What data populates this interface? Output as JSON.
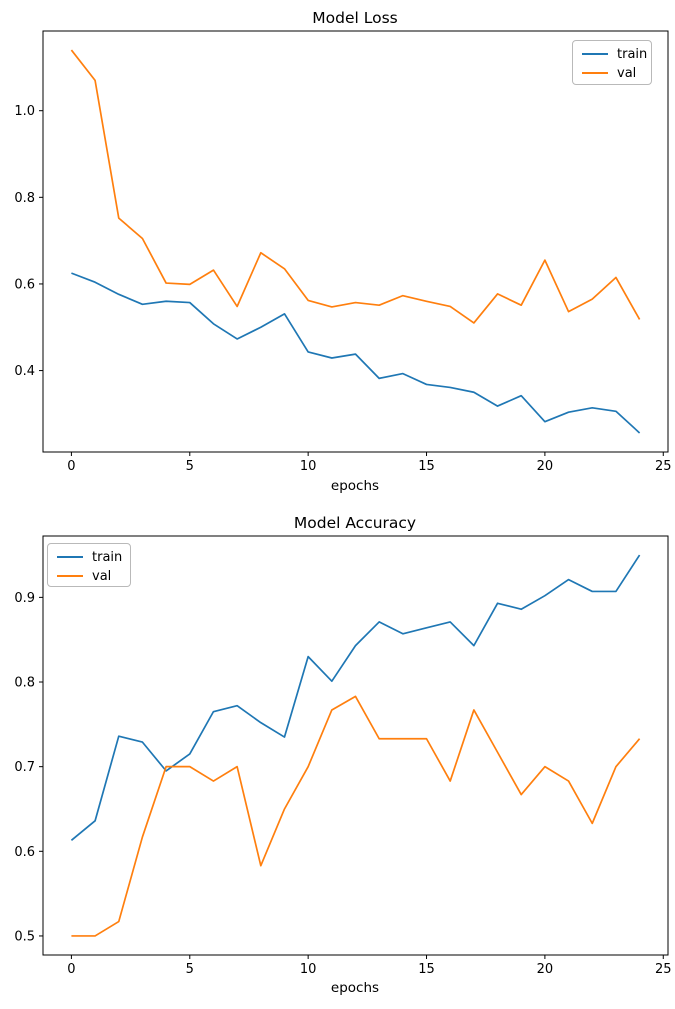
{
  "page": {
    "background": "#ffffff"
  },
  "chart_data": [
    {
      "type": "line",
      "title": "Model Loss",
      "xlabel": "epochs",
      "ylabel": "",
      "grid": false,
      "legend_position": "upper right",
      "x": [
        0,
        1,
        2,
        3,
        4,
        5,
        6,
        7,
        8,
        9,
        10,
        11,
        12,
        13,
        14,
        15,
        16,
        17,
        18,
        19,
        20,
        21,
        22,
        23,
        24
      ],
      "series": [
        {
          "name": "train",
          "color": "#1f77b4",
          "values": [
            0.625,
            0.604,
            0.576,
            0.553,
            0.56,
            0.557,
            0.508,
            0.473,
            0.5,
            0.531,
            0.443,
            0.429,
            0.438,
            0.382,
            0.393,
            0.368,
            0.361,
            0.35,
            0.318,
            0.342,
            0.282,
            0.304,
            0.314,
            0.306,
            0.256
          ]
        },
        {
          "name": "val",
          "color": "#ff7f0e",
          "values": [
            1.14,
            1.07,
            0.752,
            0.705,
            0.602,
            0.599,
            0.632,
            0.548,
            0.672,
            0.635,
            0.562,
            0.547,
            0.557,
            0.551,
            0.573,
            0.56,
            0.548,
            0.51,
            0.577,
            0.551,
            0.655,
            0.536,
            0.565,
            0.615,
            0.518
          ]
        }
      ],
      "xlim": [
        -1.2,
        25.2
      ],
      "ylim": [
        0.212,
        1.184
      ],
      "xticks": [
        0,
        5,
        10,
        15,
        20,
        25
      ],
      "yticks": [
        0.4,
        0.6,
        0.8,
        1.0
      ]
    },
    {
      "type": "line",
      "title": "Model Accuracy",
      "xlabel": "epochs",
      "ylabel": "",
      "grid": false,
      "legend_position": "upper left",
      "x": [
        0,
        1,
        2,
        3,
        4,
        5,
        6,
        7,
        8,
        9,
        10,
        11,
        12,
        13,
        14,
        15,
        16,
        17,
        18,
        19,
        20,
        21,
        22,
        23,
        24
      ],
      "series": [
        {
          "name": "train",
          "color": "#1f77b4",
          "values": [
            0.613,
            0.636,
            0.736,
            0.729,
            0.695,
            0.715,
            0.765,
            0.772,
            0.752,
            0.735,
            0.83,
            0.801,
            0.843,
            0.871,
            0.857,
            0.864,
            0.871,
            0.843,
            0.893,
            0.886,
            0.902,
            0.921,
            0.907,
            0.907,
            0.95
          ]
        },
        {
          "name": "val",
          "color": "#ff7f0e",
          "values": [
            0.5,
            0.5,
            0.517,
            0.617,
            0.7,
            0.7,
            0.683,
            0.7,
            0.583,
            0.65,
            0.7,
            0.767,
            0.783,
            0.733,
            0.733,
            0.733,
            0.683,
            0.767,
            0.717,
            0.667,
            0.7,
            0.683,
            0.633,
            0.7,
            0.733
          ]
        }
      ],
      "xlim": [
        -1.2,
        25.2
      ],
      "ylim": [
        0.4775,
        0.9725
      ],
      "xticks": [
        0,
        5,
        10,
        15,
        20,
        25
      ],
      "yticks": [
        0.5,
        0.6,
        0.7,
        0.8,
        0.9
      ]
    }
  ]
}
